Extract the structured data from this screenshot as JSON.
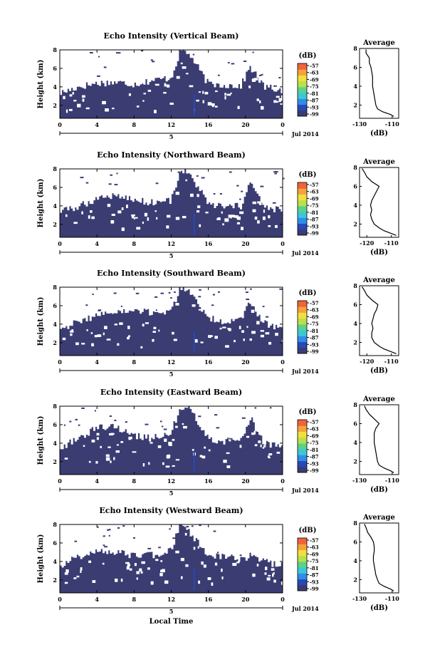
{
  "figure": {
    "panels": [
      {
        "title": "Echo Intensity (Vertical Beam)"
      },
      {
        "title": "Echo Intensity (Northward Beam)"
      },
      {
        "title": "Echo Intensity (Southward Beam)"
      },
      {
        "title": "Echo Intensity (Eastward Beam)"
      },
      {
        "title": "Echo Intensity (Westward Beam)"
      }
    ],
    "shared": {
      "ylabel": "Height (km)",
      "xlabel_bottom": "Local Time",
      "date_axis_label": "5",
      "date_note": "Jul 2014",
      "colorbar_unit": "(dB)",
      "average_title": "Average",
      "average_xlabel": "(dB)"
    },
    "colors": {
      "background_echo": "#3a3c72",
      "no_data": "#ffffff",
      "colormap": [
        "#3a3c72",
        "#2a48b8",
        "#2f8ee8",
        "#3cc7d6",
        "#5cd18a",
        "#b9e04a",
        "#f2de3c",
        "#f5a23a",
        "#f0643a"
      ]
    }
  },
  "chart_data": [
    {
      "type": "heatmap",
      "title": "Echo Intensity (Vertical Beam)",
      "xlabel": "",
      "ylabel": "Height (km)",
      "x_ticks": [
        "0",
        "4",
        "8",
        "12",
        "16",
        "20",
        "0"
      ],
      "y_ticks": [
        "2",
        "4",
        "6",
        "8"
      ],
      "xlim": [
        0,
        24
      ],
      "ylim": [
        0.6,
        8
      ],
      "colorbar": {
        "label": "(dB)",
        "ticks": [
          "-57",
          "-63",
          "-69",
          "-75",
          "-81",
          "-87",
          "-93",
          "-99"
        ]
      },
      "echo_top_profile": {
        "x": [
          0,
          2,
          4,
          6,
          8,
          10,
          12,
          13,
          14,
          16,
          18,
          19.5,
          20.5,
          22,
          24
        ],
        "top_km": [
          3.3,
          4.0,
          4.4,
          4.5,
          4.3,
          4.7,
          5.0,
          8.0,
          7.5,
          4.3,
          4.2,
          4.1,
          6.2,
          4.0,
          3.6
        ]
      },
      "average_profile": {
        "title": "Average",
        "xlabel": "(dB)",
        "x_ticks": [
          "-130",
          "-110"
        ],
        "y_ticks": [
          "2",
          "4",
          "6",
          "8"
        ],
        "xlim": [
          -130,
          -106
        ],
        "ylim": [
          0.6,
          8
        ],
        "height_km": [
          0.8,
          1.0,
          1.3,
          1.6,
          2.0,
          2.5,
          3.0,
          3.5,
          4.0,
          4.5,
          5.0,
          5.5,
          6.0,
          6.5,
          7.0,
          7.5,
          7.9
        ],
        "intensity_db": [
          -109,
          -111,
          -116,
          -119,
          -120,
          -120.5,
          -121,
          -121.5,
          -122,
          -122,
          -122,
          -122.5,
          -123,
          -124,
          -124,
          -126,
          -126
        ]
      }
    },
    {
      "type": "heatmap",
      "title": "Echo Intensity (Northward Beam)",
      "xlabel": "",
      "ylabel": "Height (km)",
      "x_ticks": [
        "0",
        "4",
        "8",
        "12",
        "16",
        "20",
        "0"
      ],
      "y_ticks": [
        "2",
        "4",
        "6",
        "8"
      ],
      "xlim": [
        0,
        24
      ],
      "ylim": [
        0.6,
        8
      ],
      "colorbar": {
        "label": "(dB)",
        "ticks": [
          "-57",
          "-63",
          "-69",
          "-75",
          "-81",
          "-87",
          "-93",
          "-99"
        ]
      },
      "echo_top_profile": {
        "x": [
          0,
          2,
          4,
          6,
          8,
          10,
          12,
          13,
          14,
          16,
          18,
          19.5,
          20.5,
          22,
          24
        ],
        "top_km": [
          3.4,
          3.9,
          4.8,
          5.2,
          4.6,
          4.4,
          4.6,
          8.0,
          7.4,
          4.2,
          3.8,
          4.0,
          6.6,
          3.8,
          3.5
        ]
      },
      "average_profile": {
        "title": "Average",
        "xlabel": "(dB)",
        "x_ticks": [
          "-120",
          "-110"
        ],
        "y_ticks": [
          "2",
          "4",
          "6",
          "8"
        ],
        "xlim": [
          -123,
          -107
        ],
        "ylim": [
          0.6,
          8
        ],
        "height_km": [
          0.8,
          1.0,
          1.3,
          1.6,
          2.0,
          2.5,
          3.0,
          3.5,
          4.0,
          4.5,
          5.0,
          5.5,
          6.0,
          6.5,
          7.0,
          7.5,
          7.9
        ],
        "intensity_db": [
          -108,
          -110,
          -113,
          -115,
          -117,
          -118,
          -118.5,
          -118,
          -118.5,
          -118,
          -117,
          -116,
          -115,
          -118,
          -120,
          -121,
          -122
        ]
      }
    },
    {
      "type": "heatmap",
      "title": "Echo Intensity (Southward Beam)",
      "xlabel": "",
      "ylabel": "Height (km)",
      "x_ticks": [
        "0",
        "4",
        "8",
        "12",
        "16",
        "20",
        "0"
      ],
      "y_ticks": [
        "2",
        "4",
        "6",
        "8"
      ],
      "xlim": [
        0,
        24
      ],
      "ylim": [
        0.6,
        8
      ],
      "colorbar": {
        "label": "(dB)",
        "ticks": [
          "-57",
          "-63",
          "-69",
          "-75",
          "-81",
          "-87",
          "-93",
          "-99"
        ]
      },
      "echo_top_profile": {
        "x": [
          0,
          2,
          4,
          6,
          8,
          10,
          12,
          13,
          14,
          16,
          18,
          19.5,
          20.5,
          22,
          24
        ],
        "top_km": [
          3.6,
          4.2,
          5.0,
          5.3,
          5.4,
          5.2,
          5.5,
          8.0,
          7.6,
          4.6,
          4.3,
          4.4,
          6.4,
          4.1,
          3.6
        ]
      },
      "average_profile": {
        "title": "Average",
        "xlabel": "(dB)",
        "x_ticks": [
          "-120",
          "-110"
        ],
        "y_ticks": [
          "2",
          "4",
          "6",
          "8"
        ],
        "xlim": [
          -123,
          -107
        ],
        "ylim": [
          0.6,
          8
        ],
        "height_km": [
          0.8,
          1.0,
          1.3,
          1.6,
          2.0,
          2.5,
          3.0,
          3.5,
          4.0,
          4.5,
          5.0,
          5.5,
          6.0,
          6.5,
          7.0,
          7.5,
          7.9
        ],
        "intensity_db": [
          -108,
          -110,
          -113,
          -115,
          -117,
          -118,
          -118,
          -117.5,
          -118,
          -117.5,
          -117,
          -116,
          -115.5,
          -118,
          -120,
          -121,
          -122
        ]
      }
    },
    {
      "type": "heatmap",
      "title": "Echo Intensity (Eastward Beam)",
      "xlabel": "",
      "ylabel": "Height (km)",
      "x_ticks": [
        "0",
        "4",
        "8",
        "12",
        "16",
        "20",
        "0"
      ],
      "y_ticks": [
        "2",
        "4",
        "6",
        "8"
      ],
      "xlim": [
        0,
        24
      ],
      "ylim": [
        0.6,
        8
      ],
      "colorbar": {
        "label": "(dB)",
        "ticks": [
          "-57",
          "-63",
          "-69",
          "-75",
          "-81",
          "-87",
          "-93",
          "-99"
        ]
      },
      "echo_top_profile": {
        "x": [
          0,
          2,
          4,
          6,
          8,
          10,
          12,
          13,
          14,
          16,
          18,
          19.5,
          20.5,
          22,
          24
        ],
        "top_km": [
          3.4,
          4.6,
          5.6,
          5.8,
          4.8,
          4.5,
          5.2,
          8.0,
          7.8,
          4.4,
          4.2,
          4.3,
          6.8,
          4.0,
          3.5
        ]
      },
      "average_profile": {
        "title": "Average",
        "xlabel": "(dB)",
        "x_ticks": [
          "-130",
          "-110"
        ],
        "y_ticks": [
          "2",
          "4",
          "6",
          "8"
        ],
        "xlim": [
          -130,
          -106
        ],
        "ylim": [
          0.6,
          8
        ],
        "height_km": [
          0.8,
          1.0,
          1.3,
          1.6,
          2.0,
          2.5,
          3.0,
          3.5,
          4.0,
          4.5,
          5.0,
          5.5,
          6.0,
          6.5,
          7.0,
          7.5,
          7.9
        ],
        "intensity_db": [
          -109,
          -111,
          -115,
          -118,
          -119,
          -119.5,
          -120,
          -120.5,
          -121,
          -121,
          -121,
          -120,
          -118,
          -121,
          -124,
          -126,
          -127
        ]
      }
    },
    {
      "type": "heatmap",
      "title": "Echo Intensity (Westward Beam)",
      "xlabel": "Local Time",
      "ylabel": "Height (km)",
      "x_ticks": [
        "0",
        "4",
        "8",
        "12",
        "16",
        "20",
        "0"
      ],
      "y_ticks": [
        "2",
        "4",
        "6",
        "8"
      ],
      "xlim": [
        0,
        24
      ],
      "ylim": [
        0.6,
        8
      ],
      "colorbar": {
        "label": "(dB)",
        "ticks": [
          "-57",
          "-63",
          "-69",
          "-75",
          "-81",
          "-87",
          "-93",
          "-99"
        ]
      },
      "echo_top_profile": {
        "x": [
          0,
          2,
          4,
          6,
          8,
          10,
          12,
          13,
          14,
          16,
          18,
          19.5,
          20.5,
          22,
          24
        ],
        "top_km": [
          3.6,
          4.5,
          5.1,
          5.0,
          4.6,
          4.7,
          5.3,
          8.0,
          7.2,
          4.7,
          4.4,
          4.3,
          4.6,
          4.0,
          3.5
        ]
      },
      "average_profile": {
        "title": "Average",
        "xlabel": "(dB)",
        "x_ticks": [
          "-130",
          "-110"
        ],
        "y_ticks": [
          "2",
          "4",
          "6",
          "8"
        ],
        "xlim": [
          -130,
          -106
        ],
        "ylim": [
          0.6,
          8
        ],
        "height_km": [
          0.8,
          1.0,
          1.3,
          1.6,
          2.0,
          2.5,
          3.0,
          3.5,
          4.0,
          4.5,
          5.0,
          5.5,
          6.0,
          6.5,
          7.0,
          7.5,
          7.9
        ],
        "intensity_db": [
          -109,
          -111,
          -115,
          -118,
          -119,
          -120,
          -120.5,
          -121,
          -121.5,
          -121.5,
          -121,
          -121,
          -121.5,
          -123,
          -125,
          -126,
          -127
        ]
      }
    }
  ]
}
